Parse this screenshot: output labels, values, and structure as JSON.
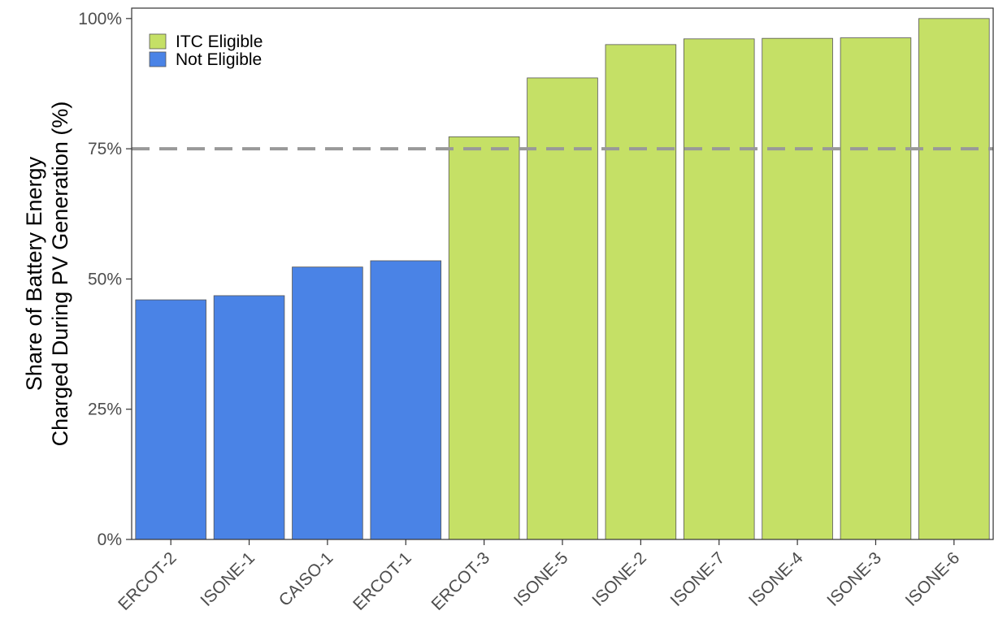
{
  "chart_data": {
    "type": "bar",
    "title": "",
    "xlabel": "",
    "ylabel": "Share of Battery Energy\nCharged During PV Generation (%)",
    "categories": [
      "ERCOT-2",
      "ISONE-1",
      "CAISO-1",
      "ERCOT-1",
      "ERCOT-3",
      "ISONE-5",
      "ISONE-2",
      "ISONE-7",
      "ISONE-4",
      "ISONE-3",
      "ISONE-6"
    ],
    "values": [
      46.0,
      46.8,
      52.3,
      53.5,
      77.3,
      88.6,
      95.0,
      96.1,
      96.2,
      96.3,
      100.0
    ],
    "groups": [
      "Not Eligible",
      "Not Eligible",
      "Not Eligible",
      "Not Eligible",
      "ITC Eligible",
      "ITC Eligible",
      "ITC Eligible",
      "ITC Eligible",
      "ITC Eligible",
      "ITC Eligible",
      "ITC Eligible"
    ],
    "ylim": [
      0,
      102
    ],
    "yticks": [
      0,
      25,
      50,
      75,
      100
    ],
    "ytick_labels": [
      "0%",
      "25%",
      "50%",
      "75%",
      "100%"
    ],
    "threshold": 75,
    "legend": {
      "placement": "top-left",
      "entries": [
        {
          "label": "ITC Eligible",
          "color": "#c5e066"
        },
        {
          "label": "Not Eligible",
          "color": "#4a83e6"
        }
      ]
    },
    "grid": false
  }
}
